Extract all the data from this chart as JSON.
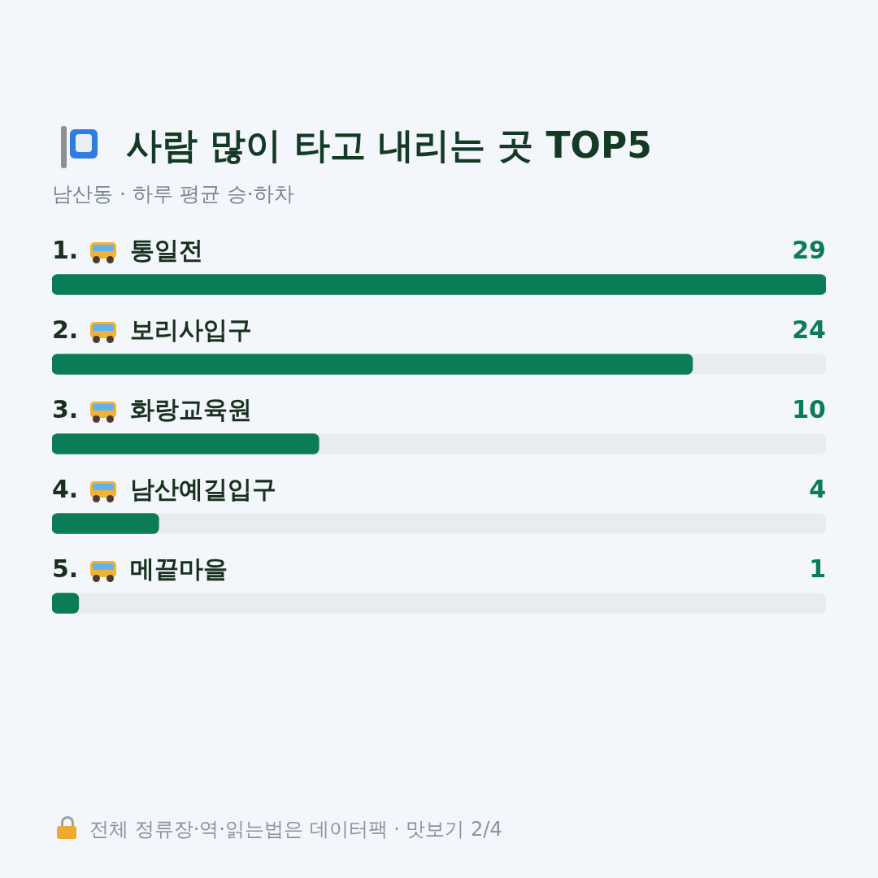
{
  "chart_data": {
    "type": "bar",
    "orientation": "horizontal",
    "title": "사람 많이 타고 내리는 곳 TOP5",
    "subtitle": "남산동 · 하루 평균 승·하차",
    "categories": [
      "1. 통일전",
      "2. 보리사입구",
      "3. 화랑교육원",
      "4. 남산예길입구",
      "5. 메끝마을"
    ],
    "values": [
      29,
      24,
      10,
      4,
      1
    ],
    "color": "#0b7d56",
    "xlim": [
      0,
      29
    ],
    "data_labels": true,
    "legend": false,
    "tick_labels": false,
    "annotations": [
      "전체 정류장·역·읽는법은 데이터팩 · 맛보기 2/4"
    ]
  }
}
